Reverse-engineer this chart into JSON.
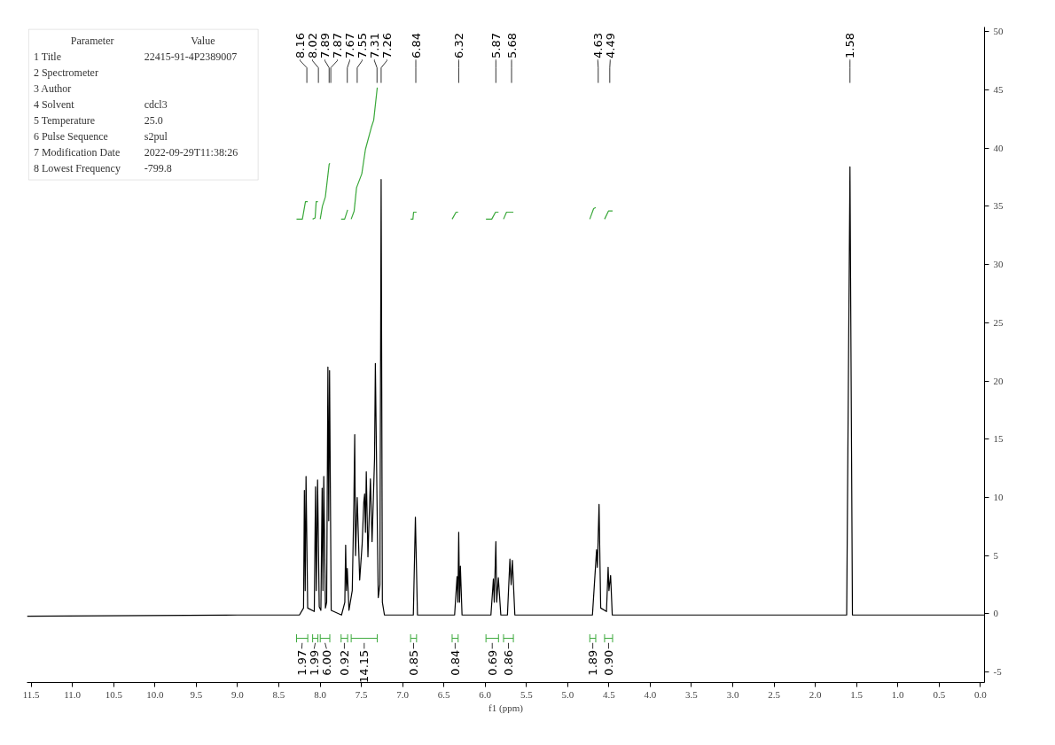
{
  "chart_data": {
    "type": "line",
    "xlabel": "f1 (ppm)",
    "xlim": [
      11.55,
      -0.05
    ],
    "ylim": [
      -5.9,
      50.4
    ],
    "xticks": [
      11.5,
      {
        "value": 11.0,
        "label": "11.0"
      },
      10.5,
      {
        "value": 10.0,
        "label": "10.0"
      },
      9.5,
      {
        "value": 9.0,
        "label": "9.0"
      },
      8.5,
      {
        "value": 8.0,
        "label": "8.0"
      },
      7.5,
      {
        "value": 7.0,
        "label": "7.0"
      },
      6.5,
      {
        "value": 6.0,
        "label": "6.0"
      },
      5.5,
      {
        "value": 5.0,
        "label": "5.0"
      },
      4.5,
      {
        "value": 4.0,
        "label": "4.0"
      },
      3.5,
      {
        "value": 3.0,
        "label": "3.0"
      },
      2.5,
      {
        "value": 2.0,
        "label": "2.0"
      },
      1.5,
      {
        "value": 1.0,
        "label": "1.0"
      },
      0.5,
      {
        "value": 0.0,
        "label": "0.0"
      }
    ],
    "yticks": [
      -5,
      0,
      5,
      10,
      15,
      20,
      25,
      30,
      35,
      40,
      45,
      50
    ],
    "grid": false,
    "marker": "none",
    "line_style": "solid",
    "series": [
      {
        "color": "#000000",
        "x": [
          11.55,
          9.0,
          8.25,
          8.2,
          8.19,
          8.18,
          8.17,
          8.15,
          8.07,
          8.055,
          8.045,
          8.03,
          8.01,
          7.99,
          7.975,
          7.965,
          7.955,
          7.935,
          7.92,
          7.905,
          7.895,
          7.885,
          7.865,
          7.74,
          7.7,
          7.69,
          7.68,
          7.67,
          7.65,
          7.61,
          7.59,
          7.58,
          7.57,
          7.55,
          7.52,
          7.49,
          7.47,
          7.46,
          7.45,
          7.44,
          7.42,
          7.39,
          7.37,
          7.34,
          7.33,
          7.31,
          7.295,
          7.275,
          7.26,
          7.245,
          7.22,
          6.87,
          6.845,
          6.82,
          6.37,
          6.34,
          6.33,
          6.32,
          6.31,
          6.3,
          6.28,
          5.93,
          5.9,
          5.89,
          5.87,
          5.86,
          5.84,
          5.81,
          5.73,
          5.7,
          5.685,
          5.67,
          5.64,
          4.7,
          4.65,
          4.64,
          4.62,
          4.6,
          4.53,
          4.51,
          4.5,
          4.48,
          4.46,
          1.62,
          1.58,
          1.55,
          -0.05
        ],
        "values": [
          -0.2,
          -0.1,
          -0.1,
          0.5,
          10.6,
          2.0,
          11.8,
          0.5,
          0.2,
          10.9,
          2.0,
          11.5,
          0.6,
          0.3,
          10.8,
          2.0,
          11.8,
          0.5,
          1.0,
          21.2,
          8.0,
          20.9,
          0.3,
          -0.1,
          1.0,
          5.9,
          2.0,
          3.9,
          0.3,
          2.0,
          9.7,
          15.4,
          5.0,
          10.0,
          2.9,
          6.0,
          9.6,
          10.3,
          7.0,
          12.2,
          4.9,
          11.6,
          6.2,
          13.3,
          21.5,
          9.7,
          1.4,
          2.5,
          37.3,
          1.0,
          -0.1,
          -0.1,
          8.3,
          -0.1,
          -0.1,
          3.2,
          1.0,
          7.0,
          1.0,
          4.1,
          -0.1,
          -0.1,
          3.0,
          1.0,
          6.2,
          1.0,
          3.1,
          -0.1,
          -0.1,
          4.7,
          2.5,
          4.6,
          -0.1,
          -0.1,
          5.5,
          4.0,
          9.4,
          0.5,
          0.2,
          4.0,
          2.0,
          3.3,
          -0.1,
          -0.1,
          38.4,
          -0.1,
          -0.1
        ]
      },
      {
        "color": "#3aa83a",
        "x": [
          8.285,
          8.214,
          8.177,
          8.149,
          null,
          8.09,
          8.06,
          8.047,
          8.026,
          null,
          7.998,
          7.972,
          7.936,
          7.89,
          7.882,
          null,
          7.745,
          7.702,
          7.666,
          null,
          7.623,
          7.587,
          7.558,
          7.494,
          7.45,
          7.378,
          7.35,
          7.307,
          null,
          6.903,
          6.875,
          6.867,
          6.831,
          null,
          6.4,
          6.352,
          6.327,
          null,
          5.99,
          5.92,
          5.874,
          5.838,
          null,
          5.777,
          5.741,
          5.658,
          null,
          4.732,
          4.686,
          4.66,
          null,
          4.553,
          4.506,
          4.456
        ],
        "values": [
          33.9,
          33.9,
          35.4,
          35.4,
          null,
          33.9,
          34.0,
          35.4,
          35.4,
          null,
          33.9,
          35.0,
          35.8,
          38.6,
          38.7,
          null,
          33.9,
          33.9,
          34.7,
          null,
          33.9,
          34.6,
          36.6,
          37.8,
          39.9,
          41.8,
          42.4,
          45.2,
          null,
          33.9,
          33.9,
          34.5,
          34.5,
          null,
          33.9,
          34.5,
          34.5,
          null,
          33.9,
          33.9,
          34.5,
          34.5,
          null,
          33.9,
          34.5,
          34.5,
          null,
          33.9,
          34.8,
          34.9,
          null,
          33.9,
          34.6,
          34.6
        ]
      }
    ],
    "ref_lines": [
      {
        "axis": "x",
        "value": 8.16,
        "label": "8.16"
      },
      {
        "axis": "x",
        "value": 8.02,
        "label": "8.02"
      },
      {
        "axis": "x",
        "value": 7.89,
        "label": "7.89"
      },
      {
        "axis": "x",
        "value": 7.87,
        "label": "7.87"
      },
      {
        "axis": "x",
        "value": 7.67,
        "label": "7.67"
      },
      {
        "axis": "x",
        "value": 7.55,
        "label": "7.55"
      },
      {
        "axis": "x",
        "value": 7.31,
        "label": "7.31"
      },
      {
        "axis": "x",
        "value": 7.26,
        "label": "7.26"
      },
      {
        "axis": "x",
        "value": 6.84,
        "label": "6.84"
      },
      {
        "axis": "x",
        "value": 6.32,
        "label": "6.32"
      },
      {
        "axis": "x",
        "value": 5.87,
        "label": "5.87"
      },
      {
        "axis": "x",
        "value": 5.68,
        "label": "5.68"
      },
      {
        "axis": "x",
        "value": 4.63,
        "label": "4.63"
      },
      {
        "axis": "x",
        "value": 4.49,
        "label": "4.49"
      },
      {
        "axis": "x",
        "value": 1.58,
        "label": "1.58"
      }
    ],
    "annotations": [
      "Parameter\tValue",
      "1 Title\t22415-91-4P2389007",
      "2 Spectrometer",
      "3 Author",
      "4 Solvent\tcdcl3",
      "5 Temperature\t25.0",
      "6 Pulse Sequence\ts2pul",
      "7 Modification Date\t2022-09-29T11:38:26",
      "8 Lowest Frequency\t-799.8",
      "1.97",
      "1.99",
      "6.00",
      "0.92",
      "14.15",
      "0.85",
      "0.84",
      "0.69",
      "0.86",
      "1.89",
      "0.90"
    ]
  }
}
